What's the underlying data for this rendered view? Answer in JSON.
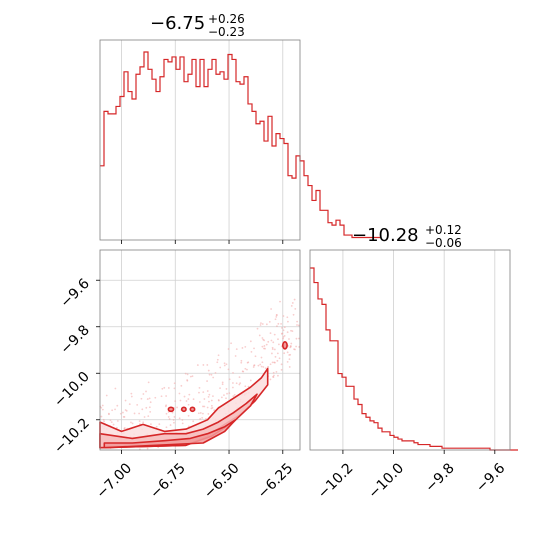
{
  "chart_data": [
    {
      "type": "histogram",
      "panel": "marginal-x",
      "title": {
        "median": "−6.75",
        "plus": "+0.26",
        "minus": "−0.23"
      },
      "xlim": [
        -7.1,
        -6.17
      ],
      "color": "#d62728",
      "bin_start": -7.1,
      "bin_width": 0.0186,
      "counts": [
        30,
        52,
        51,
        51,
        54,
        58,
        68,
        60,
        57,
        67,
        70,
        76,
        69,
        65,
        60,
        66,
        73,
        72,
        74,
        69,
        74,
        64,
        67,
        73,
        62,
        73,
        62,
        69,
        73,
        67,
        68,
        65,
        75,
        73,
        64,
        63,
        66,
        55,
        52,
        47,
        48,
        40,
        50,
        38,
        43,
        41,
        39,
        26,
        25,
        34,
        32,
        26,
        22,
        16,
        20,
        12,
        12,
        7,
        6,
        8,
        6,
        2,
        2,
        1,
        1,
        1,
        1,
        1,
        1,
        1
      ]
    },
    {
      "type": "histogram",
      "panel": "marginal-y",
      "title": {
        "median": "−10.28",
        "plus": "+0.12",
        "minus": "−0.06"
      },
      "xlim": [
        -10.33,
        -9.54
      ],
      "xticks": [
        -10.2,
        -10.0,
        -9.8,
        -9.6
      ],
      "xtick_labels": [
        "−10.2",
        "−10.0",
        "−9.8",
        "−9.6"
      ],
      "color": "#d62728",
      "bin_start": -10.33,
      "bin_width": 0.0158,
      "counts": [
        100,
        92,
        83,
        80,
        66,
        60,
        60,
        42,
        40,
        35,
        35,
        28,
        25,
        20,
        18,
        16,
        15,
        12,
        10,
        10,
        8,
        7,
        6,
        5,
        5,
        5,
        4,
        3,
        3,
        3,
        2,
        2,
        2,
        1,
        1,
        1,
        1,
        1,
        1,
        1,
        1,
        1,
        1,
        1,
        1,
        0,
        0,
        0,
        0,
        0,
        0,
        0
      ]
    },
    {
      "type": "contour",
      "panel": "joint",
      "xlim": [
        -7.1,
        -6.17
      ],
      "ylim": [
        -10.33,
        -9.47
      ],
      "xticks": [
        -7.0,
        -6.75,
        -6.5,
        -6.25
      ],
      "xtick_labels": [
        "−7.00",
        "−6.75",
        "−6.50",
        "−6.25"
      ],
      "yticks": [
        -9.6,
        -9.8,
        -10.0,
        -10.2
      ],
      "ytick_labels": [
        "−9.6",
        "−9.8",
        "−10.0",
        "−10.2"
      ],
      "color": "#d62728",
      "fill_color": "#f4b6b6",
      "contour_levels": [
        {
          "points": [
            [
              -7.1,
              -10.21
            ],
            [
              -7.0,
              -10.25
            ],
            [
              -6.9,
              -10.22
            ],
            [
              -6.8,
              -10.25
            ],
            [
              -6.7,
              -10.24
            ],
            [
              -6.6,
              -10.2
            ],
            [
              -6.55,
              -10.15
            ],
            [
              -6.5,
              -10.12
            ],
            [
              -6.45,
              -10.09
            ],
            [
              -6.4,
              -10.06
            ],
            [
              -6.35,
              -10.02
            ],
            [
              -6.32,
              -9.98
            ],
            [
              -6.32,
              -10.05
            ],
            [
              -6.38,
              -10.12
            ],
            [
              -6.45,
              -10.18
            ],
            [
              -6.52,
              -10.22
            ],
            [
              -6.6,
              -10.27
            ],
            [
              -6.7,
              -10.31
            ],
            [
              -7.1,
              -10.32
            ]
          ]
        },
        {
          "points": [
            [
              -7.1,
              -10.26
            ],
            [
              -6.95,
              -10.28
            ],
            [
              -6.8,
              -10.26
            ],
            [
              -6.7,
              -10.26
            ],
            [
              -6.62,
              -10.24
            ],
            [
              -6.55,
              -10.21
            ],
            [
              -6.48,
              -10.17
            ],
            [
              -6.42,
              -10.13
            ],
            [
              -6.37,
              -10.09
            ],
            [
              -6.4,
              -10.14
            ],
            [
              -6.48,
              -10.21
            ],
            [
              -6.58,
              -10.27
            ],
            [
              -6.7,
              -10.31
            ],
            [
              -7.1,
              -10.32
            ]
          ]
        },
        {
          "points": [
            [
              -7.08,
              -10.3
            ],
            [
              -6.95,
              -10.3
            ],
            [
              -6.8,
              -10.29
            ],
            [
              -6.68,
              -10.28
            ],
            [
              -6.6,
              -10.26
            ],
            [
              -6.52,
              -10.23
            ],
            [
              -6.47,
              -10.2
            ],
            [
              -6.52,
              -10.25
            ],
            [
              -6.62,
              -10.3
            ],
            [
              -7.08,
              -10.32
            ]
          ]
        }
      ],
      "islands": [
        {
          "x": -6.77,
          "y": -10.155,
          "rx": 0.012,
          "ry": 0.008
        },
        {
          "x": -6.71,
          "y": -10.155,
          "rx": 0.01,
          "ry": 0.008
        },
        {
          "x": -6.67,
          "y": -10.155,
          "rx": 0.01,
          "ry": 0.008
        },
        {
          "x": -6.24,
          "y": -9.88,
          "rx": 0.01,
          "ry": 0.015
        }
      ]
    }
  ]
}
